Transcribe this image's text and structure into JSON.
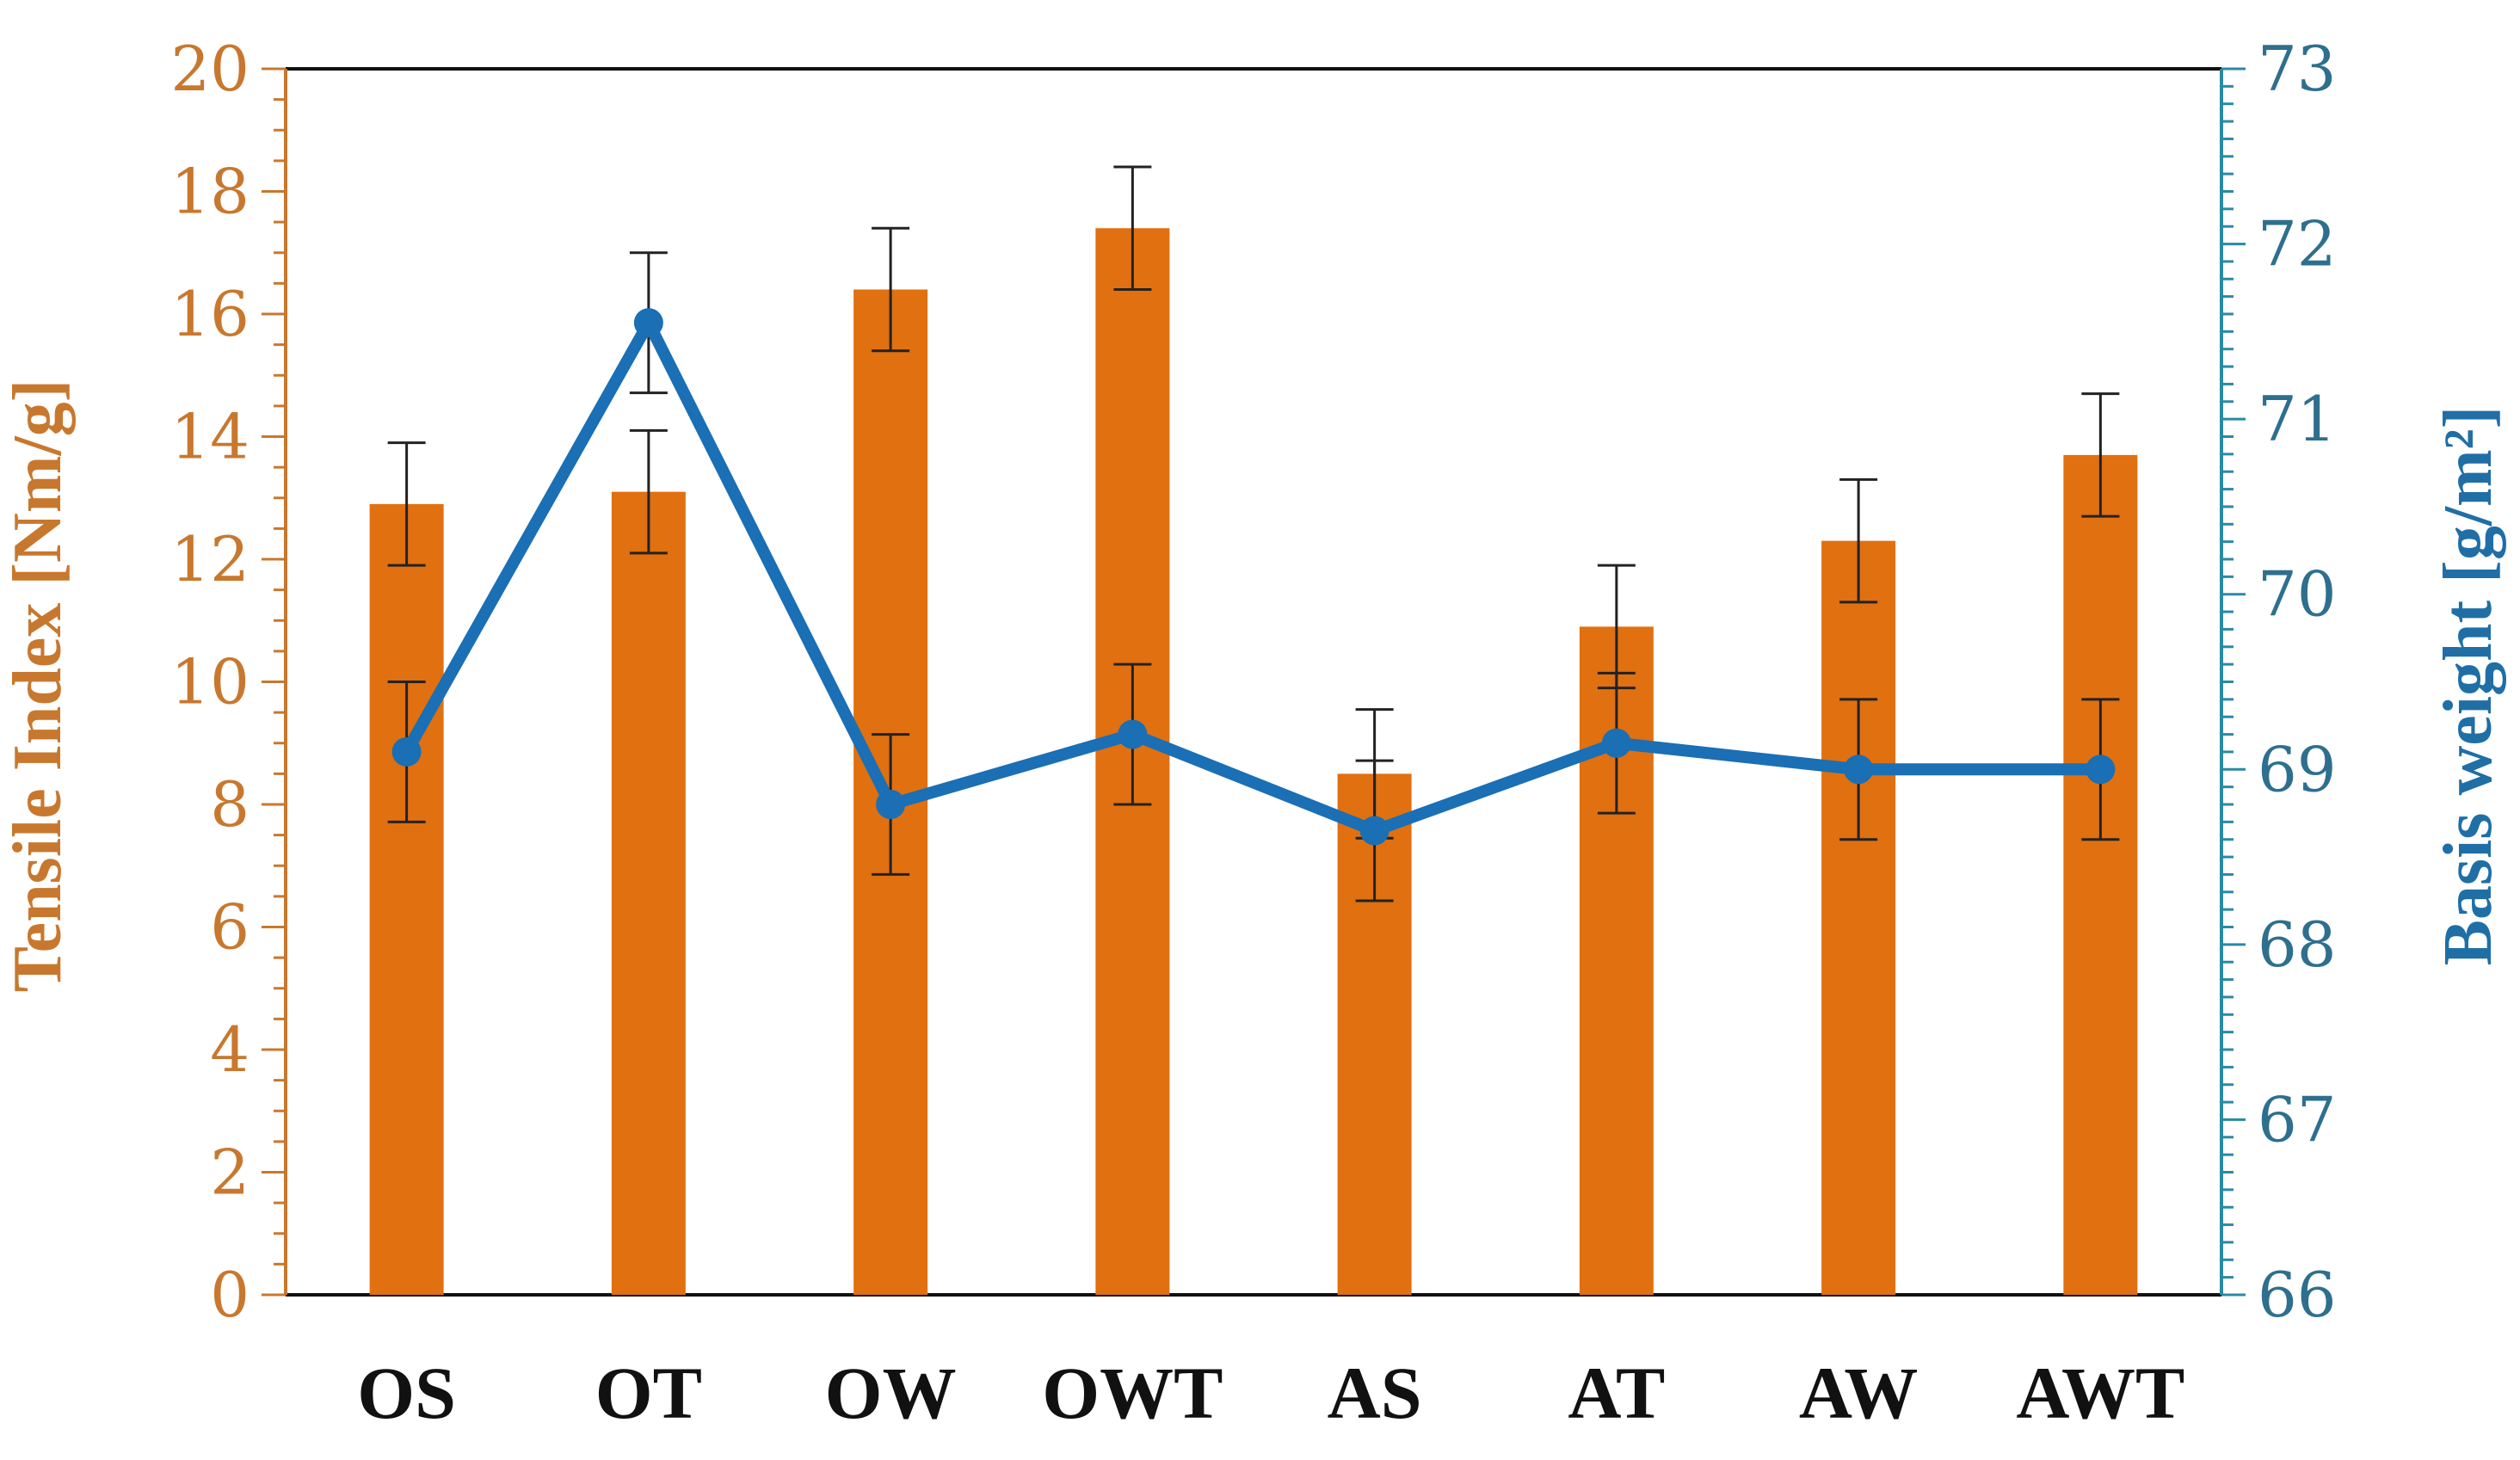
{
  "chart_data": {
    "type": "bar",
    "categories": [
      "OS",
      "OT",
      "OW",
      "OWT",
      "AS",
      "AT",
      "AW",
      "AWT"
    ],
    "ylabel": "Tensile Index [Nm/g]",
    "ylabel_right": "Basis weight [g/m²]",
    "ylim": [
      0,
      20
    ],
    "y2lim": [
      66,
      73
    ],
    "yticks": [
      "0",
      "2",
      "4",
      "6",
      "8",
      "10",
      "12",
      "14",
      "16",
      "18",
      "20"
    ],
    "y2ticks": [
      "66",
      "67",
      "68",
      "69",
      "70",
      "71",
      "72",
      "73"
    ],
    "grid": false,
    "series": [
      {
        "kind": "bar",
        "axis": "left",
        "values": [
          12.9,
          13.1,
          16.4,
          17.4,
          8.5,
          10.9,
          12.3,
          13.7
        ],
        "errors": [
          1.0,
          1.0,
          1.0,
          1.0,
          1.05,
          1.0,
          1.0,
          1.0
        ],
        "color": "#e07010"
      },
      {
        "kind": "line",
        "axis": "right",
        "values": [
          69.1,
          71.55,
          68.8,
          69.2,
          68.65,
          69.15,
          69.0,
          69.0
        ],
        "errors": [
          0.4,
          0.4,
          0.4,
          0.4,
          0.4,
          0.4,
          0.4,
          0.4
        ],
        "color": "#1a6fb5"
      }
    ],
    "colors": {
      "left_axis": "#c8782e",
      "right_axis": "#2a8aa6",
      "error_bar": "#222222"
    }
  }
}
